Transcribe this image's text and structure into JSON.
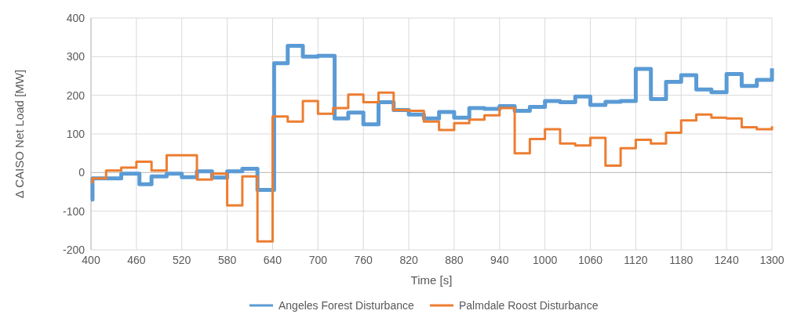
{
  "chart_data": {
    "type": "step",
    "xlabel": "Time [s]",
    "ylabel": "Δ CAISO Net Load [MW]",
    "xlim": [
      400,
      1300
    ],
    "xticks": [
      400,
      460,
      520,
      580,
      640,
      700,
      760,
      820,
      880,
      940,
      1000,
      1060,
      1120,
      1180,
      1240,
      1300
    ],
    "ylim": [
      -200,
      400
    ],
    "yticks": [
      -200,
      -100,
      0,
      100,
      200,
      300,
      400
    ],
    "grid": true,
    "legend": "bottom",
    "series": [
      {
        "name": "Angeles Forest Disturbance",
        "color": "#5b9bd5",
        "x": [
          400,
          402,
          440,
          464,
          480,
          500,
          520,
          540,
          560,
          580,
          600,
          620,
          642,
          660,
          680,
          700,
          722,
          740,
          760,
          780,
          800,
          820,
          840,
          860,
          880,
          900,
          920,
          940,
          960,
          980,
          1000,
          1020,
          1040,
          1060,
          1080,
          1100,
          1120,
          1140,
          1160,
          1180,
          1200,
          1220,
          1240,
          1260,
          1280,
          1300
        ],
        "values": [
          -70,
          -15,
          -3,
          -30,
          -10,
          -3,
          -12,
          3,
          -13,
          3,
          10,
          -45,
          283,
          328,
          300,
          302,
          140,
          155,
          125,
          182,
          162,
          150,
          140,
          157,
          142,
          167,
          165,
          172,
          160,
          170,
          185,
          182,
          197,
          175,
          183,
          185,
          268,
          190,
          235,
          252,
          215,
          208,
          255,
          224,
          240,
          270
        ]
      },
      {
        "name": "Palmdale Roost Disturbance",
        "color": "#ed7d31",
        "x": [
          400,
          402,
          420,
          440,
          460,
          480,
          500,
          540,
          560,
          580,
          600,
          620,
          640,
          660,
          680,
          700,
          720,
          740,
          760,
          780,
          800,
          820,
          840,
          860,
          880,
          900,
          920,
          940,
          960,
          980,
          1000,
          1020,
          1040,
          1060,
          1080,
          1100,
          1120,
          1140,
          1160,
          1180,
          1200,
          1220,
          1240,
          1260,
          1280,
          1300
        ],
        "values": [
          -25,
          -15,
          5,
          13,
          28,
          5,
          45,
          -18,
          -3,
          -85,
          -10,
          -178,
          145,
          132,
          185,
          152,
          167,
          202,
          182,
          207,
          162,
          160,
          132,
          110,
          128,
          137,
          148,
          167,
          50,
          87,
          112,
          75,
          70,
          90,
          18,
          63,
          85,
          75,
          103,
          135,
          150,
          142,
          140,
          117,
          112,
          120
        ]
      }
    ]
  }
}
